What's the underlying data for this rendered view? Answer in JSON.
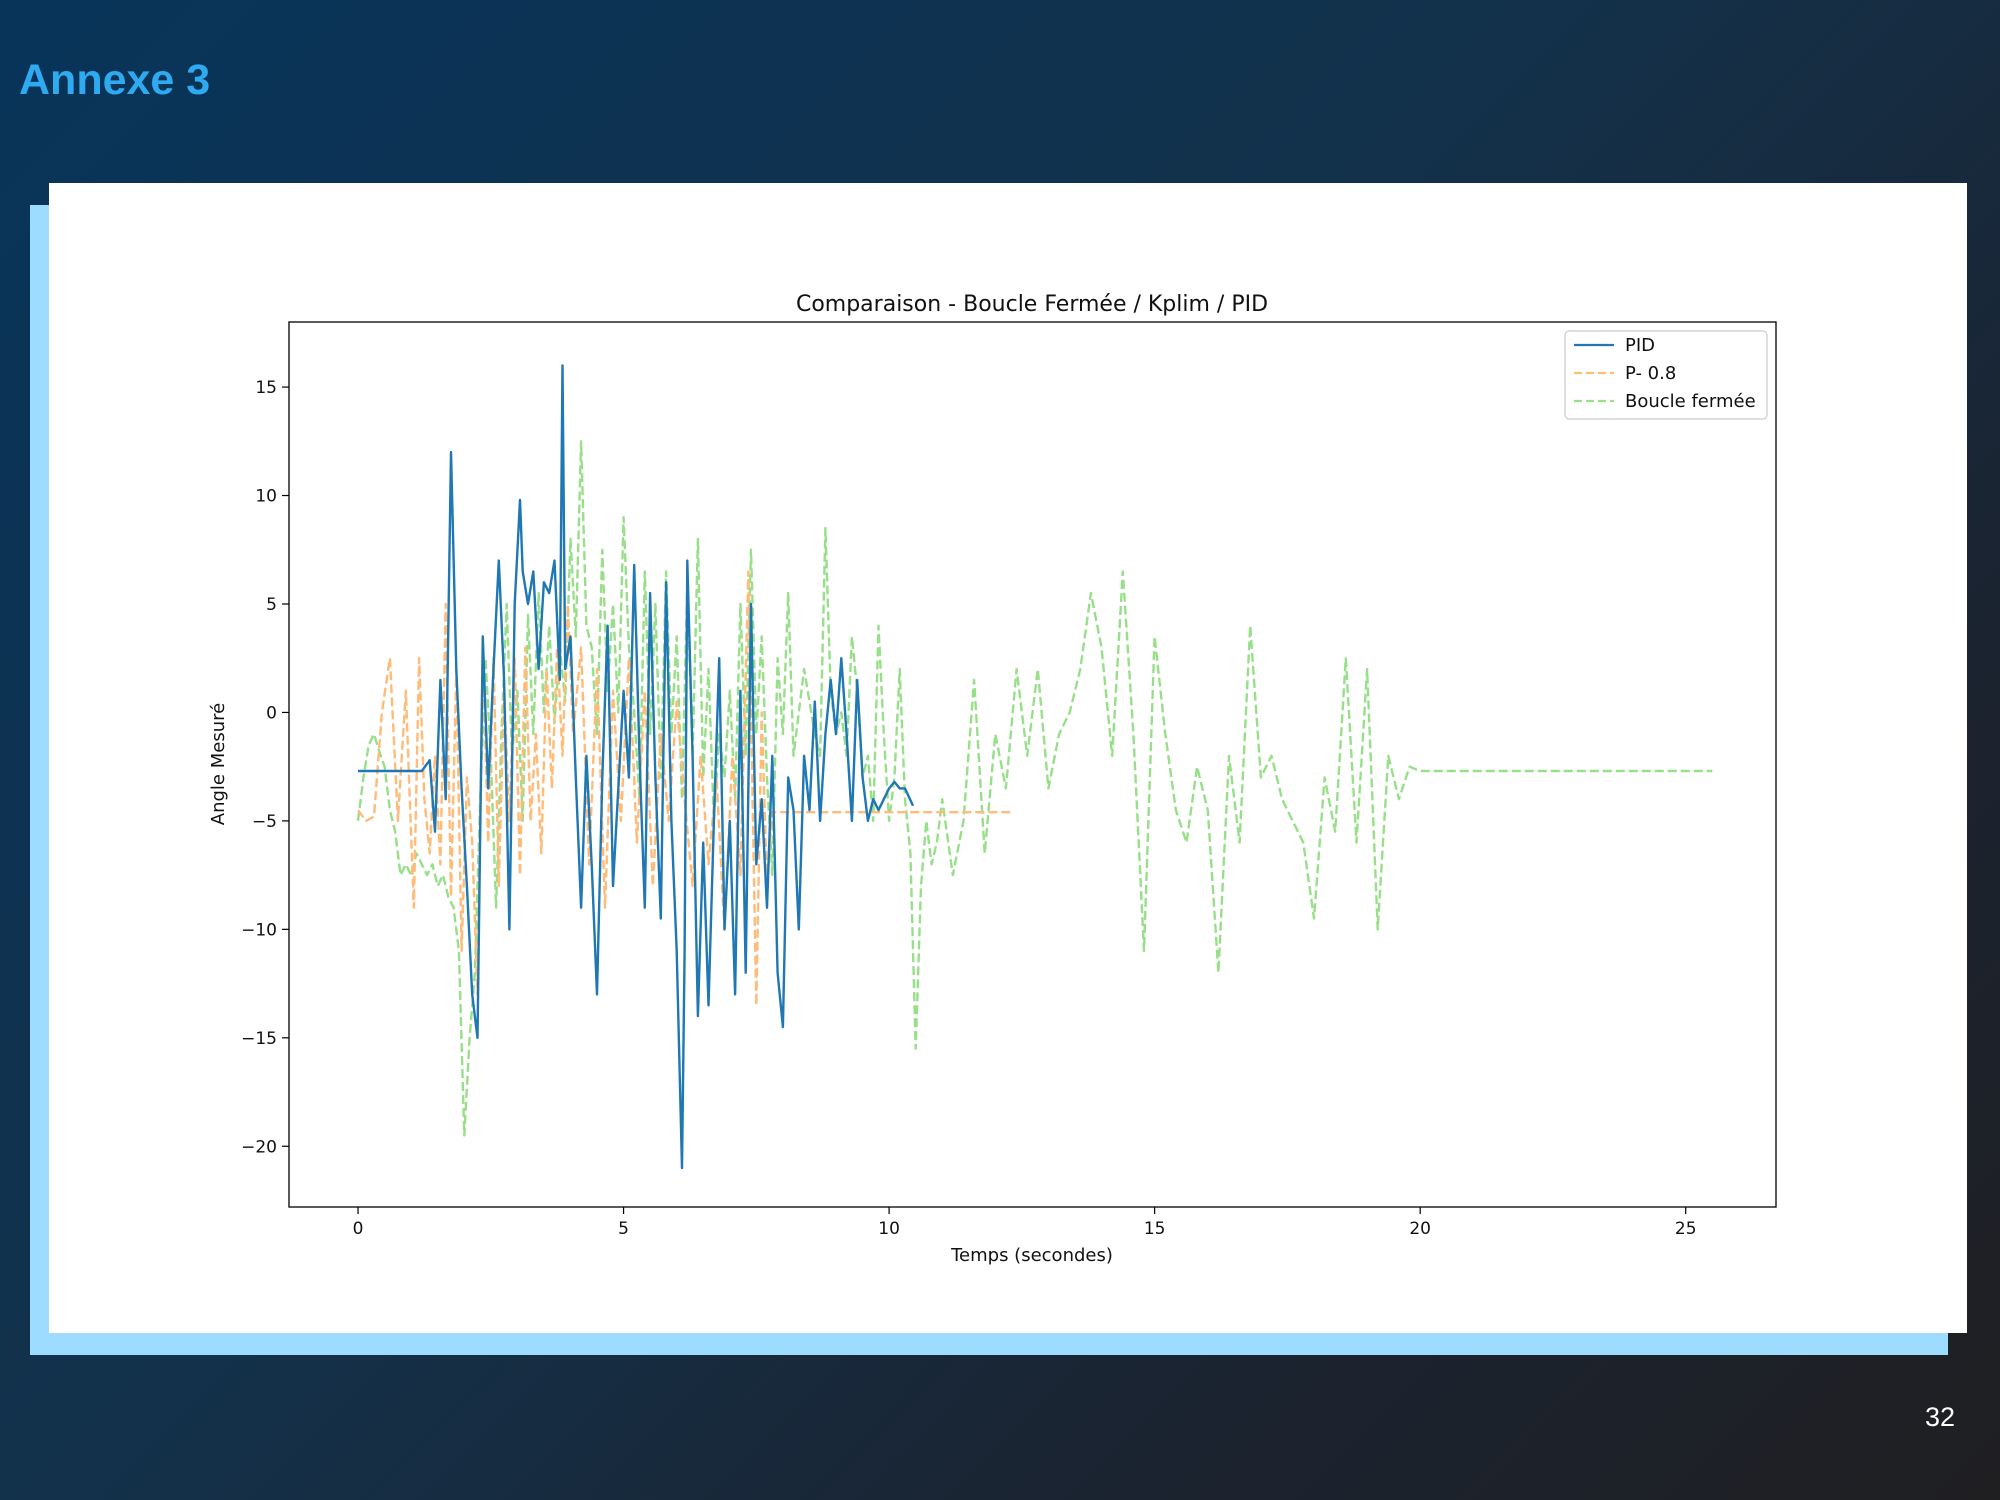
{
  "slide": {
    "title": "Annexe 3",
    "page_number": "32"
  },
  "colors": {
    "pid": "#1f77b4",
    "p": "#ffbb78",
    "closed_loop": "#98df8a"
  },
  "chart_data": {
    "type": "line",
    "title": "Comparaison - Boucle Fermée / Kplim / PID",
    "xlabel": "Temps (secondes)",
    "ylabel": "Angle Mesuré",
    "xlim": [
      -1.3,
      26.7
    ],
    "ylim": [
      -22.8,
      18.0
    ],
    "xticks": [
      0,
      5,
      10,
      15,
      20,
      25
    ],
    "yticks": [
      -20,
      -15,
      -10,
      -5,
      0,
      5,
      10,
      15
    ],
    "xtick_labels": [
      "0",
      "5",
      "10",
      "15",
      "20",
      "25"
    ],
    "ytick_labels": [
      "−20",
      "−15",
      "−10",
      "−5",
      "0",
      "5",
      "10",
      "15"
    ],
    "grid": false,
    "legend_position": "top-right",
    "series": [
      {
        "name": "PID",
        "style": "solid",
        "x": [
          0,
          0.3,
          0.6,
          0.9,
          1.2,
          1.35,
          1.45,
          1.55,
          1.65,
          1.75,
          1.85,
          1.95,
          2.05,
          2.15,
          2.25,
          2.35,
          2.45,
          2.55,
          2.65,
          2.75,
          2.85,
          2.95,
          3.05,
          3.1,
          3.2,
          3.3,
          3.4,
          3.5,
          3.6,
          3.7,
          3.8,
          3.85,
          3.9,
          4.0,
          4.1,
          4.2,
          4.3,
          4.4,
          4.5,
          4.6,
          4.7,
          4.8,
          4.9,
          5.0,
          5.1,
          5.2,
          5.3,
          5.4,
          5.5,
          5.6,
          5.7,
          5.8,
          5.9,
          6.0,
          6.1,
          6.15,
          6.2,
          6.3,
          6.4,
          6.5,
          6.6,
          6.7,
          6.8,
          6.9,
          7.0,
          7.1,
          7.2,
          7.3,
          7.4,
          7.5,
          7.6,
          7.7,
          7.8,
          7.9,
          8.0,
          8.1,
          8.2,
          8.3,
          8.4,
          8.5,
          8.6,
          8.7,
          8.8,
          8.9,
          9.0,
          9.1,
          9.2,
          9.3,
          9.4,
          9.5,
          9.6,
          9.7,
          9.8,
          9.9,
          10.0,
          10.1,
          10.2,
          10.3,
          10.45
        ],
        "y": [
          -2.7,
          -2.7,
          -2.7,
          -2.7,
          -2.7,
          -2.2,
          -5.5,
          1.5,
          -4.0,
          12.0,
          2.0,
          -3.5,
          -8.0,
          -13.0,
          -15.0,
          3.5,
          -3.5,
          2.0,
          7.0,
          1.5,
          -10.0,
          5.0,
          9.8,
          6.5,
          5.0,
          6.5,
          2.0,
          6.0,
          5.5,
          7.0,
          1.5,
          16.0,
          2.0,
          3.5,
          -3.0,
          -9.0,
          -2.0,
          -7.0,
          -13.0,
          -3.0,
          4.0,
          -8.0,
          -3.5,
          1.0,
          -3.0,
          6.8,
          -2.0,
          -9.0,
          5.5,
          -3.0,
          -9.5,
          6.0,
          -5.0,
          -11.0,
          -21.0,
          -11.0,
          7.0,
          -2.0,
          -14.0,
          -6.0,
          -13.5,
          -5.0,
          2.5,
          -10.0,
          -5.0,
          -13.0,
          1.0,
          -12.0,
          5.0,
          -7.0,
          -4.0,
          -9.0,
          -2.0,
          -12.0,
          -14.5,
          -3.0,
          -4.5,
          -10.0,
          -2.0,
          -4.5,
          0.5,
          -5.0,
          -1.0,
          1.5,
          -1.0,
          2.5,
          -1.0,
          -5.0,
          1.5,
          -3.0,
          -5.0,
          -4.0,
          -4.5,
          -4.0,
          -3.5,
          -3.2,
          -3.5,
          -3.5,
          -4.3
        ]
      },
      {
        "name": "P- 0.8",
        "style": "dashed",
        "x": [
          0,
          0.15,
          0.3,
          0.45,
          0.6,
          0.75,
          0.9,
          1.05,
          1.15,
          1.25,
          1.35,
          1.45,
          1.55,
          1.65,
          1.75,
          1.85,
          1.95,
          2.05,
          2.15,
          2.25,
          2.35,
          2.45,
          2.55,
          2.65,
          2.75,
          2.85,
          2.95,
          3.05,
          3.15,
          3.25,
          3.35,
          3.45,
          3.55,
          3.65,
          3.75,
          3.85,
          3.95,
          4.05,
          4.2,
          4.35,
          4.5,
          4.65,
          4.8,
          4.95,
          5.1,
          5.25,
          5.4,
          5.55,
          5.7,
          5.85,
          6.0,
          6.15,
          6.3,
          6.45,
          6.6,
          6.75,
          6.9,
          7.05,
          7.2,
          7.35,
          7.5,
          7.6,
          7.7,
          7.8,
          7.95,
          8.2,
          9.0,
          10.0,
          11.0,
          12.0,
          12.3
        ],
        "y": [
          -4.5,
          -5.0,
          -4.8,
          0.0,
          2.5,
          -5.0,
          1.0,
          -9.0,
          2.5,
          -4.0,
          -6.5,
          -2.0,
          -7.0,
          5.0,
          -8.5,
          2.0,
          -11.0,
          -3.0,
          -6.0,
          -13.0,
          3.0,
          -6.0,
          2.5,
          -8.0,
          1.0,
          -5.0,
          2.5,
          -7.5,
          3.0,
          -5.0,
          -1.0,
          -6.5,
          2.0,
          -3.5,
          3.0,
          -2.0,
          5.0,
          -1.0,
          3.0,
          -7.0,
          2.0,
          -9.0,
          1.0,
          -5.0,
          2.5,
          -6.0,
          1.0,
          -8.0,
          -1.0,
          -5.0,
          0.5,
          -4.0,
          -8.0,
          -2.0,
          -7.0,
          -3.0,
          -10.0,
          -2.0,
          -7.5,
          6.5,
          -13.5,
          0.0,
          -8.0,
          -4.6,
          -4.6,
          -4.6,
          -4.6,
          -4.6,
          -4.6,
          -4.6,
          -4.6
        ]
      },
      {
        "name": "Boucle fermée",
        "style": "dashed",
        "x": [
          0,
          0.1,
          0.2,
          0.3,
          0.4,
          0.5,
          0.6,
          0.7,
          0.8,
          0.9,
          1.0,
          1.1,
          1.2,
          1.3,
          1.4,
          1.5,
          1.6,
          1.7,
          1.8,
          1.9,
          2.0,
          2.1,
          2.2,
          2.3,
          2.4,
          2.5,
          2.6,
          2.7,
          2.8,
          2.9,
          3.0,
          3.1,
          3.2,
          3.3,
          3.4,
          3.5,
          3.6,
          3.7,
          3.8,
          3.9,
          4.0,
          4.1,
          4.2,
          4.3,
          4.4,
          4.5,
          4.6,
          4.7,
          4.8,
          4.9,
          5.0,
          5.1,
          5.2,
          5.3,
          5.4,
          5.5,
          5.6,
          5.7,
          5.8,
          5.9,
          6.0,
          6.1,
          6.2,
          6.3,
          6.4,
          6.5,
          6.6,
          6.7,
          6.8,
          6.9,
          7.0,
          7.1,
          7.2,
          7.3,
          7.4,
          7.5,
          7.6,
          7.7,
          7.8,
          7.9,
          8.0,
          8.1,
          8.2,
          8.3,
          8.4,
          8.5,
          8.6,
          8.7,
          8.8,
          8.9,
          9.0,
          9.1,
          9.2,
          9.3,
          9.4,
          9.5,
          9.6,
          9.7,
          9.8,
          9.9,
          10.0,
          10.1,
          10.2,
          10.3,
          10.4,
          10.5,
          10.6,
          10.7,
          10.8,
          10.9,
          11.0,
          11.2,
          11.4,
          11.6,
          11.8,
          12.0,
          12.2,
          12.4,
          12.6,
          12.8,
          13.0,
          13.2,
          13.4,
          13.6,
          13.8,
          14.0,
          14.2,
          14.4,
          14.6,
          14.8,
          15.0,
          15.2,
          15.4,
          15.6,
          15.8,
          16.0,
          16.2,
          16.4,
          16.6,
          16.8,
          17.0,
          17.2,
          17.4,
          17.6,
          17.8,
          18.0,
          18.2,
          18.4,
          18.6,
          18.8,
          19.0,
          19.2,
          19.4,
          19.6,
          19.8,
          20.0,
          20.5,
          21.0,
          22.0,
          23.0,
          24.0,
          25.0,
          25.5
        ],
        "y": [
          -5.0,
          -3.0,
          -1.5,
          -1.0,
          -1.8,
          -2.5,
          -4.5,
          -5.5,
          -7.5,
          -7.0,
          -7.5,
          -6.5,
          -7.0,
          -7.5,
          -7.0,
          -8.0,
          -7.5,
          -8.5,
          -9.0,
          -11.0,
          -19.5,
          -15.0,
          -12.0,
          -4.0,
          2.5,
          -2.0,
          -9.0,
          -1.0,
          5.0,
          -2.0,
          1.0,
          -5.0,
          4.5,
          -1.0,
          5.5,
          0.0,
          4.0,
          -0.5,
          3.0,
          0.5,
          8.0,
          3.5,
          12.5,
          4.0,
          3.0,
          -1.0,
          7.5,
          1.0,
          5.0,
          0.0,
          9.0,
          3.0,
          0.0,
          -4.0,
          6.5,
          -1.0,
          5.0,
          -3.0,
          6.5,
          -1.0,
          3.5,
          -4.0,
          6.0,
          -2.0,
          8.0,
          -3.0,
          2.0,
          -5.0,
          -1.0,
          -3.0,
          1.0,
          -4.0,
          5.0,
          -2.0,
          7.5,
          -1.0,
          3.5,
          -3.0,
          -7.5,
          2.5,
          -1.0,
          5.5,
          -2.0,
          0.0,
          2.0,
          0.5,
          -1.0,
          -2.0,
          8.5,
          1.0,
          -1.0,
          0.0,
          -2.0,
          3.5,
          1.0,
          -3.0,
          -2.0,
          -5.0,
          4.0,
          -1.0,
          -5.0,
          -3.0,
          2.0,
          -4.0,
          -6.5,
          -15.5,
          -8.0,
          -5.0,
          -7.0,
          -6.0,
          -4.0,
          -7.5,
          -5.0,
          1.5,
          -6.5,
          -1.0,
          -3.5,
          2.0,
          -2.0,
          2.0,
          -3.5,
          -1.0,
          0.0,
          2.0,
          5.5,
          3.0,
          -2.0,
          6.5,
          -1.0,
          -11.0,
          3.5,
          -1.0,
          -4.5,
          -6.0,
          -2.5,
          -4.5,
          -12.0,
          -2.0,
          -6.0,
          4.0,
          -3.0,
          -2.0,
          -4.0,
          -5.0,
          -6.0,
          -9.5,
          -3.0,
          -5.5,
          2.5,
          -6.0,
          2.0,
          -10.0,
          -2.0,
          -4.0,
          -2.5,
          -2.7,
          -2.7,
          -2.7,
          -2.7,
          -2.7,
          -2.7,
          -2.7,
          -2.7
        ]
      }
    ]
  }
}
